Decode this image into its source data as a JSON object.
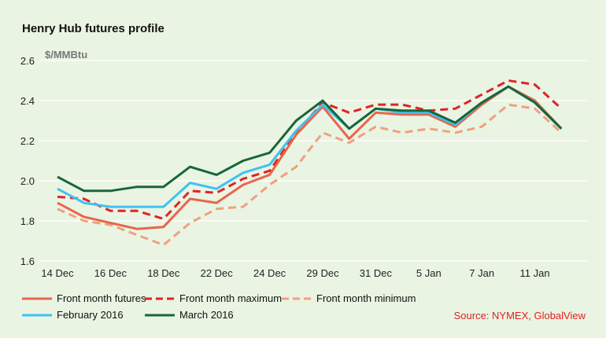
{
  "title": "Henry Hub futures profile",
  "source": "Source: NYMEX, GlobalView",
  "colors": {
    "background": "#eaf4e3",
    "grid": "#ffffff"
  },
  "chart_data": {
    "type": "line",
    "ylabel": "$/MMBtu",
    "ylim": [
      1.6,
      2.6
    ],
    "yticks": [
      1.6,
      1.8,
      2.0,
      2.2,
      2.4,
      2.6
    ],
    "grid": "horizontal",
    "legend": "bottom",
    "x_index_range": [
      0,
      25
    ],
    "xticks": [
      {
        "index": 0,
        "label": "14 Dec"
      },
      {
        "index": 2,
        "label": "16 Dec"
      },
      {
        "index": 4,
        "label": "18 Dec"
      },
      {
        "index": 6,
        "label": "22 Dec"
      },
      {
        "index": 8,
        "label": "24 Dec"
      },
      {
        "index": 10,
        "label": "29 Dec"
      },
      {
        "index": 12,
        "label": "31 Dec"
      },
      {
        "index": 14,
        "label": "5 Jan"
      },
      {
        "index": 16,
        "label": "7 Jan"
      },
      {
        "index": 18,
        "label": "11 Jan"
      }
    ],
    "series": [
      {
        "name": "Front month futures",
        "color": "#e8664a",
        "dash": "solid",
        "values": [
          1.89,
          1.82,
          1.79,
          1.76,
          1.77,
          1.91,
          1.89,
          1.98,
          2.03,
          2.23,
          2.37,
          2.21,
          2.34,
          2.33,
          2.33,
          2.27,
          2.38,
          2.47,
          2.4,
          2.26
        ]
      },
      {
        "name": "Front month maximum",
        "color": "#e02424",
        "dash": "dashed",
        "values": [
          1.92,
          1.91,
          1.85,
          1.85,
          1.81,
          1.95,
          1.94,
          2.01,
          2.05,
          2.24,
          2.39,
          2.34,
          2.38,
          2.38,
          2.35,
          2.36,
          2.43,
          2.5,
          2.48,
          2.36
        ]
      },
      {
        "name": "Front month minimum",
        "color": "#f0a080",
        "dash": "dashed",
        "values": [
          1.86,
          1.8,
          1.78,
          1.73,
          1.68,
          1.79,
          1.86,
          1.87,
          1.98,
          2.07,
          2.24,
          2.19,
          2.27,
          2.24,
          2.26,
          2.24,
          2.27,
          2.38,
          2.36,
          2.24
        ]
      },
      {
        "name": "February 2016",
        "color": "#3fc2f0",
        "dash": "solid",
        "values": [
          1.96,
          1.89,
          1.87,
          1.87,
          1.87,
          1.99,
          1.96,
          2.04,
          2.08,
          2.25,
          2.38,
          2.26,
          2.36,
          2.34,
          2.34,
          2.28,
          2.39,
          2.47,
          2.39,
          2.26
        ]
      },
      {
        "name": "March 2016",
        "color": "#17663a",
        "dash": "solid",
        "values": [
          2.02,
          1.95,
          1.95,
          1.97,
          1.97,
          2.07,
          2.03,
          2.1,
          2.14,
          2.3,
          2.4,
          2.26,
          2.36,
          2.35,
          2.35,
          2.29,
          2.39,
          2.47,
          2.39,
          2.26
        ]
      }
    ]
  }
}
